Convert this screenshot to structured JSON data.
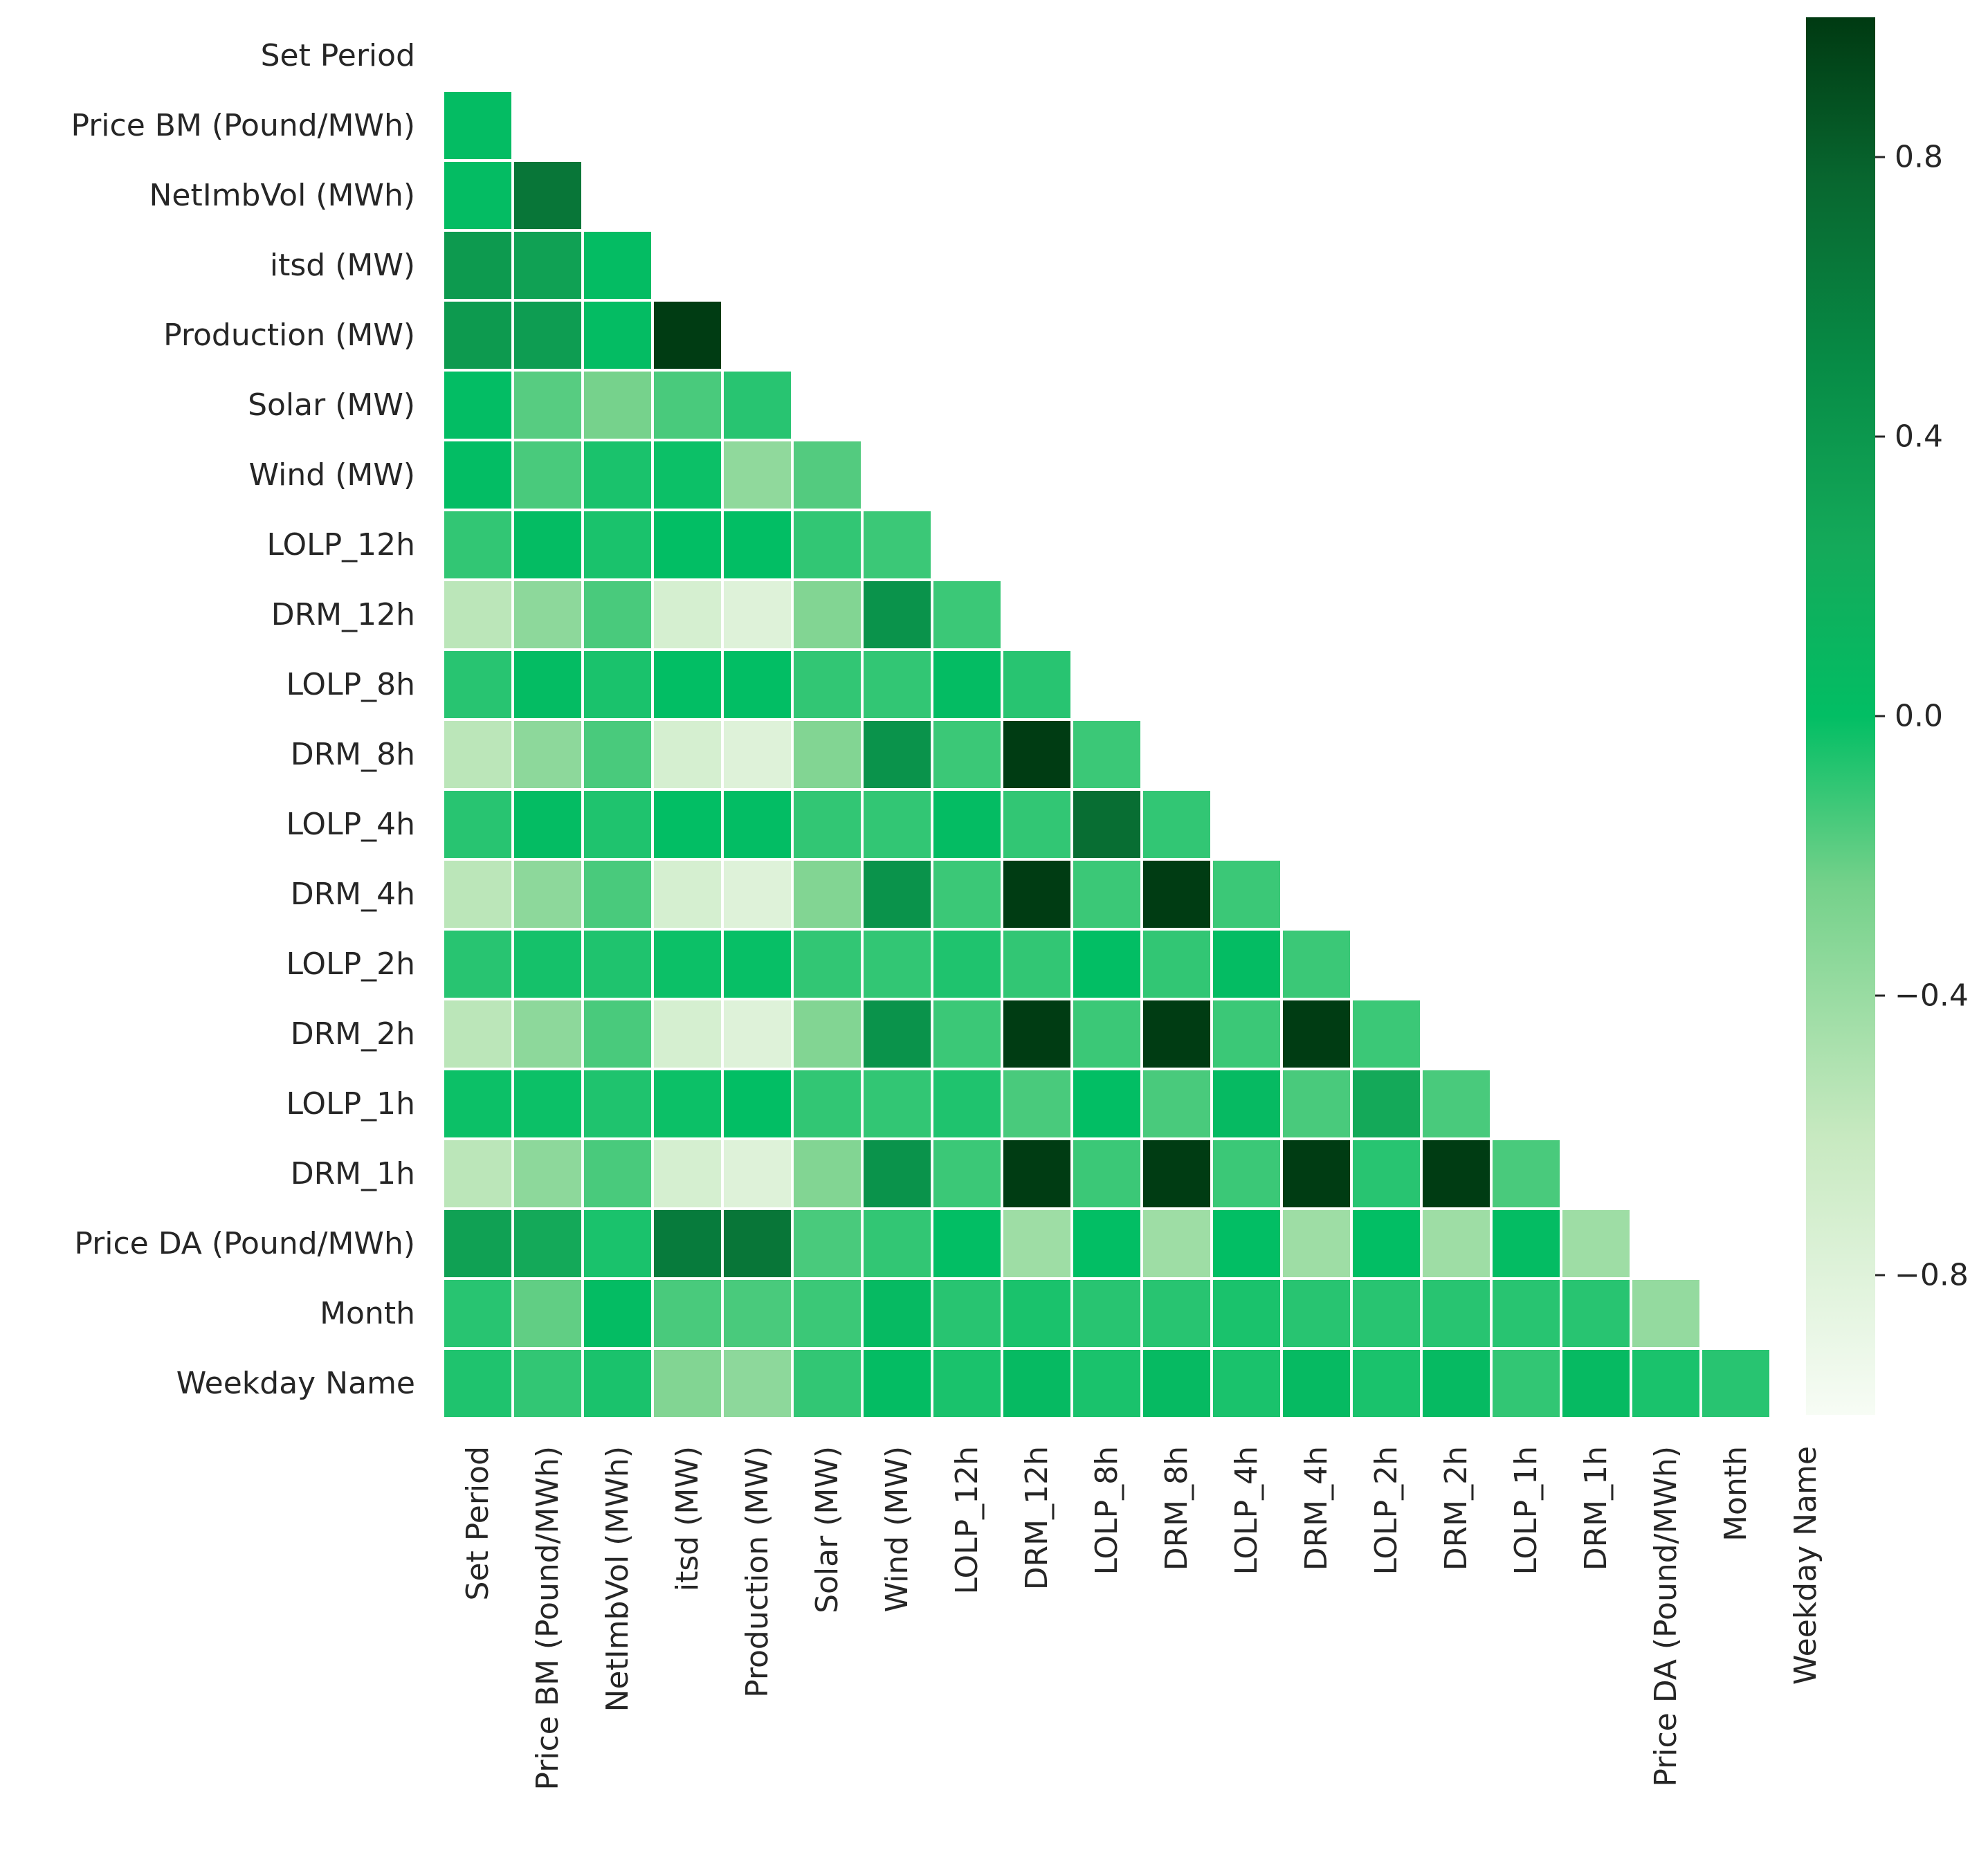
{
  "chart_data": {
    "type": "heatmap",
    "title": "",
    "variables": [
      "Set Period",
      "Price BM (Pound/MWh)",
      "NetImbVol (MWh)",
      "itsd (MW)",
      "Production (MW)",
      "Solar (MW)",
      "Wind (MW)",
      "LOLP_12h",
      "DRM_12h",
      "LOLP_8h",
      "DRM_8h",
      "LOLP_4h",
      "DRM_4h",
      "LOLP_2h",
      "DRM_2h",
      "LOLP_1h",
      "DRM_1h",
      "Price DA (Pound/MWh)",
      "Month",
      "Weekday Name"
    ],
    "mask": "lower-triangle (diagonal hidden)",
    "rows": [
      [],
      [
        0.02
      ],
      [
        0.02,
        0.66
      ],
      [
        0.38,
        0.32,
        0.02
      ],
      [
        0.38,
        0.35,
        0.03,
        0.99
      ],
      [
        0.01,
        -0.18,
        -0.25,
        -0.15,
        -0.08
      ],
      [
        0.01,
        -0.15,
        -0.05,
        -0.02,
        -0.36,
        -0.17
      ],
      [
        -0.1,
        0.02,
        -0.05,
        0.0,
        0.0,
        -0.1,
        -0.12
      ],
      [
        -0.55,
        -0.35,
        -0.15,
        -0.72,
        -0.79,
        -0.3,
        0.44,
        -0.12
      ],
      [
        -0.08,
        0.02,
        -0.05,
        0.0,
        0.0,
        -0.1,
        -0.1,
        0.02,
        -0.08
      ],
      [
        -0.55,
        -0.35,
        -0.15,
        -0.72,
        -0.79,
        -0.3,
        0.44,
        -0.12,
        0.99,
        -0.12
      ],
      [
        -0.08,
        0.02,
        -0.06,
        0.0,
        0.01,
        -0.1,
        -0.1,
        0.02,
        -0.1,
        0.72,
        -0.1
      ],
      [
        -0.55,
        -0.35,
        -0.15,
        -0.72,
        -0.79,
        -0.3,
        0.44,
        -0.12,
        0.99,
        -0.12,
        0.99,
        -0.12
      ],
      [
        -0.08,
        -0.04,
        -0.06,
        -0.02,
        -0.01,
        -0.1,
        -0.1,
        -0.06,
        -0.1,
        0.0,
        -0.1,
        0.02,
        -0.12
      ],
      [
        -0.55,
        -0.35,
        -0.15,
        -0.72,
        -0.79,
        -0.3,
        0.44,
        -0.12,
        0.99,
        -0.12,
        0.99,
        -0.12,
        0.99,
        -0.12
      ],
      [
        -0.02,
        -0.02,
        -0.06,
        -0.02,
        0.0,
        -0.1,
        -0.1,
        -0.06,
        -0.15,
        0.0,
        -0.15,
        0.05,
        -0.15,
        0.25,
        -0.15
      ],
      [
        -0.55,
        -0.35,
        -0.15,
        -0.72,
        -0.79,
        -0.3,
        0.44,
        -0.12,
        0.99,
        -0.12,
        0.99,
        -0.12,
        0.99,
        -0.08,
        0.99,
        -0.15
      ],
      [
        0.32,
        0.25,
        -0.05,
        0.62,
        0.66,
        -0.15,
        -0.1,
        0.0,
        -0.42,
        0.0,
        -0.42,
        0.0,
        -0.42,
        0.0,
        -0.42,
        0.02,
        -0.42
      ],
      [
        -0.08,
        -0.2,
        0.03,
        -0.15,
        -0.15,
        -0.12,
        0.05,
        -0.08,
        -0.05,
        -0.08,
        -0.08,
        -0.05,
        -0.08,
        -0.08,
        -0.08,
        -0.08,
        -0.08,
        -0.38
      ],
      [
        -0.06,
        -0.1,
        -0.05,
        -0.3,
        -0.35,
        -0.1,
        0.03,
        -0.05,
        0.05,
        -0.05,
        0.05,
        -0.05,
        0.05,
        -0.05,
        0.05,
        -0.1,
        0.05,
        -0.05,
        -0.08
      ]
    ],
    "colorbar": {
      "colormap": "Greens",
      "vmin": -1,
      "vmax": 1,
      "ticks": [
        0.8,
        0.4,
        0.0,
        -0.4,
        -0.8
      ],
      "tick_labels": [
        "0.8",
        "0.4",
        "0.0",
        "−0.4",
        "−0.8"
      ]
    }
  }
}
